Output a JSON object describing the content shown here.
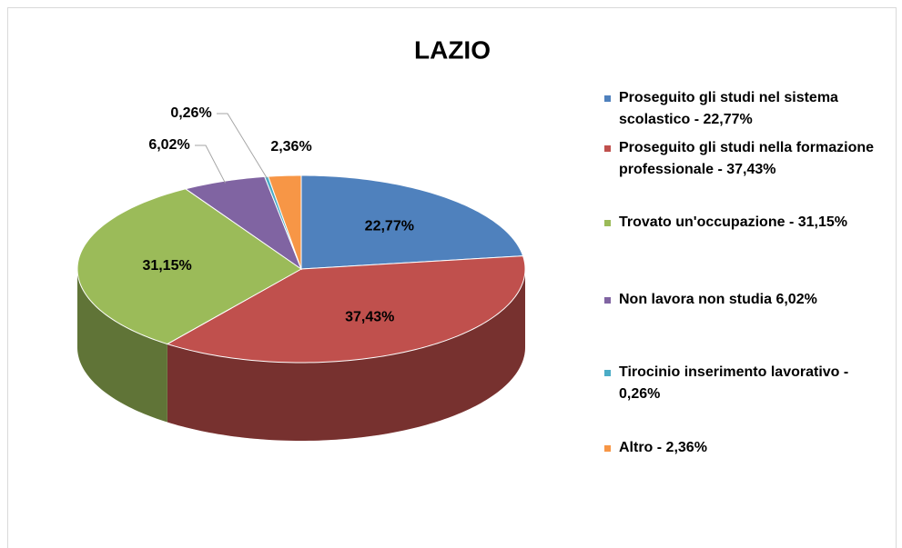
{
  "chart_data": {
    "type": "pie",
    "title": "LAZIO",
    "categories": [
      "Proseguito gli studi nel sistema scolastico - 22,77%",
      "Proseguito gli studi nella formazione professionale - 37,43%",
      "Trovato un'occupazione - 31,15%",
      "Non lavora non studia 6,02%",
      "Tirocinio inserimento lavorativo - 0,26%",
      "Altro - 2,36%"
    ],
    "values": [
      22.77,
      37.43,
      31.15,
      6.02,
      0.26,
      2.36
    ],
    "value_labels": [
      "22,77%",
      "37,43%",
      "31,15%",
      "6,02%",
      "0,26%",
      "2,36%"
    ],
    "colors": [
      "#4f81bd",
      "#c0504d",
      "#9bbb59",
      "#8064a2",
      "#4bacc6",
      "#f79646"
    ],
    "legend": "right"
  }
}
